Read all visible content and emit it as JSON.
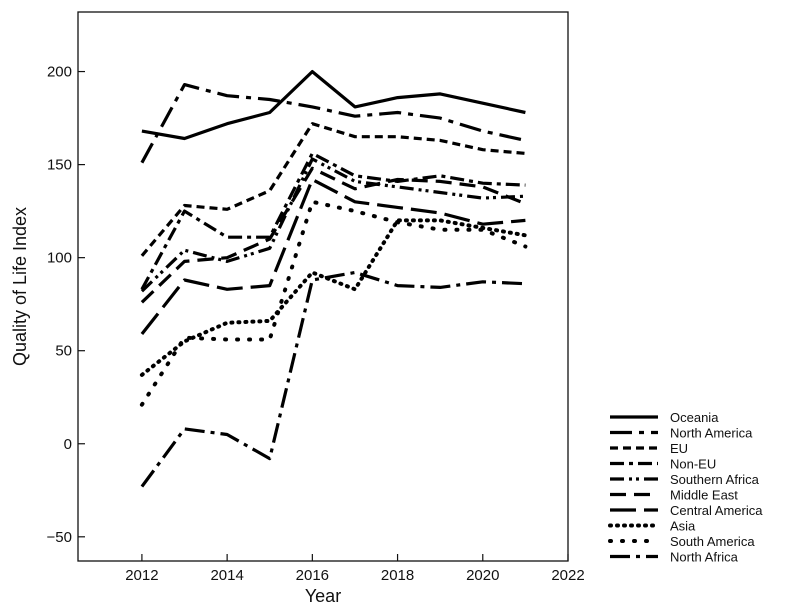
{
  "chart_data": {
    "type": "line",
    "title": "",
    "xlabel": "Year",
    "ylabel": "Quality of Life Index",
    "xlim": [
      2010.5,
      2022
    ],
    "ylim": [
      -63,
      232
    ],
    "x_ticks": [
      2012,
      2014,
      2016,
      2018,
      2020,
      2022
    ],
    "y_ticks": [
      -50,
      0,
      50,
      100,
      150,
      200
    ],
    "grid": false,
    "legend_position": "bottom-right, outside plot",
    "x": [
      2012,
      2013,
      2014,
      2015,
      2016,
      2017,
      2018,
      2019,
      2020,
      2021
    ],
    "series": [
      {
        "name": "Oceania",
        "dash": "solid",
        "values": [
          168,
          164,
          172,
          178,
          200,
          181,
          186,
          188,
          183,
          178
        ]
      },
      {
        "name": "North America",
        "dash": "dash-dot-long",
        "values": [
          151,
          193,
          187,
          185,
          181,
          176,
          178,
          175,
          168,
          163
        ]
      },
      {
        "name": "EU",
        "dash": "short-dash",
        "values": [
          101,
          128,
          126,
          136,
          172,
          165,
          165,
          163,
          158,
          156
        ]
      },
      {
        "name": "Non-EU",
        "dash": "dash-dot",
        "values": [
          83,
          125,
          111,
          111,
          156,
          144,
          141,
          144,
          140,
          139
        ]
      },
      {
        "name": "Southern Africa",
        "dash": "dash-dot-dot",
        "values": [
          82,
          104,
          98,
          105,
          153,
          141,
          138,
          135,
          132,
          133
        ]
      },
      {
        "name": "Middle East",
        "dash": "medium-dash",
        "values": [
          76,
          98,
          100,
          110,
          148,
          137,
          142,
          141,
          138,
          129
        ]
      },
      {
        "name": "Central America",
        "dash": "long-dash",
        "values": [
          59,
          88,
          83,
          85,
          142,
          130,
          127,
          124,
          118,
          120
        ]
      },
      {
        "name": "Asia",
        "dash": "dotted",
        "values": [
          37,
          55,
          65,
          66,
          92,
          83,
          120,
          120,
          116,
          112
        ]
      },
      {
        "name": "South America",
        "dash": "sparse-dotted",
        "values": [
          21,
          57,
          56,
          56,
          130,
          125,
          119,
          115,
          115,
          106
        ]
      },
      {
        "name": "North Africa",
        "dash": "long-dash-dot",
        "values": [
          -23,
          8,
          5,
          -8,
          88,
          92,
          85,
          84,
          87,
          86
        ]
      }
    ]
  }
}
